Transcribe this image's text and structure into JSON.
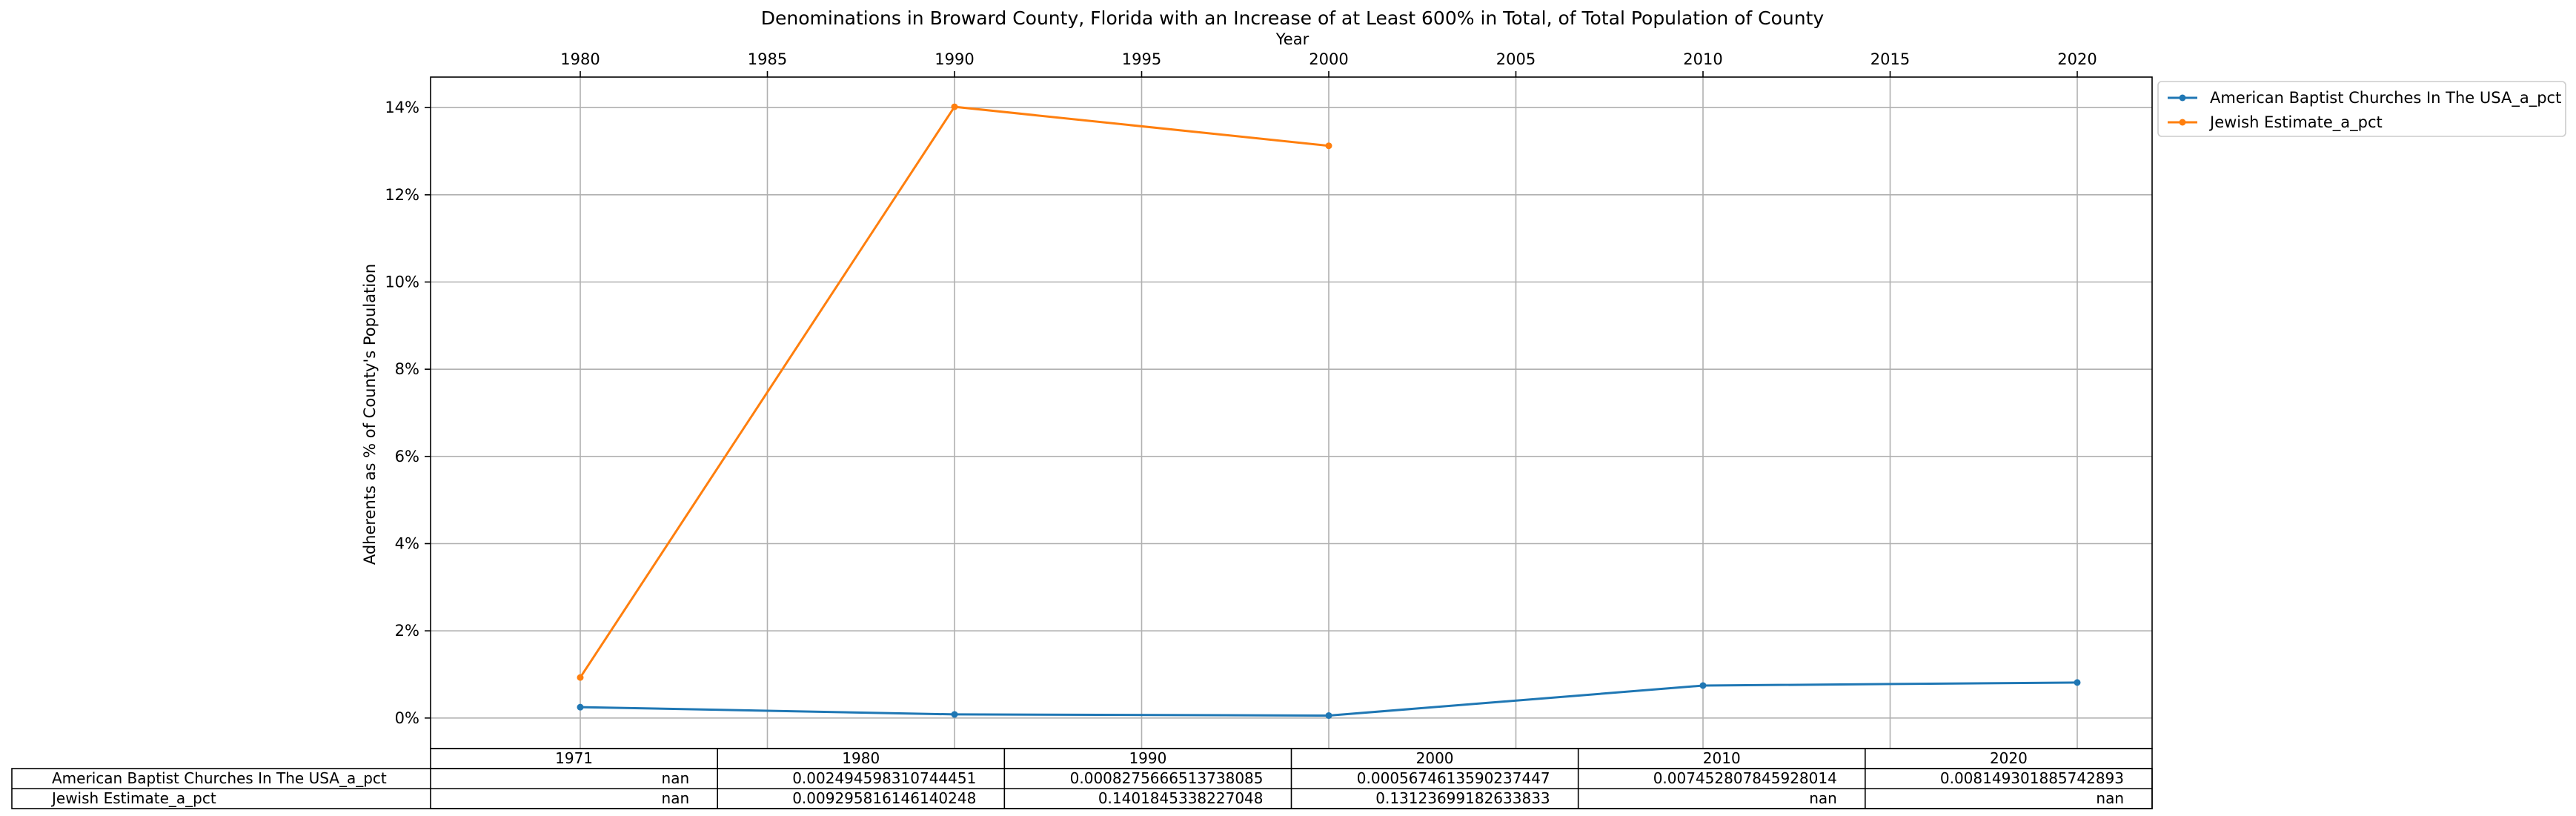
{
  "chart_data": {
    "type": "line",
    "title": "Denominations in Broward County, Florida with an Increase of at Least 600% in Total, of Total Population of County",
    "xlabel": "Year",
    "ylabel": "Adherents as % of County's Population",
    "x_ticks": [
      "1980",
      "1985",
      "1990",
      "1995",
      "2000",
      "2005",
      "2010",
      "2015",
      "2020"
    ],
    "y_ticks": [
      "0%",
      "2%",
      "4%",
      "6%",
      "8%",
      "10%",
      "12%",
      "14%"
    ],
    "xlim": [
      1976,
      2022
    ],
    "ylim": [
      -0.007,
      0.147
    ],
    "x_axis_position": "top",
    "grid": true,
    "legend_position": "outside upper right",
    "series": [
      {
        "name": "American Baptist Churches In The USA_a_pct",
        "color": "#1f77b4",
        "x": [
          1980,
          1990,
          2000,
          2010,
          2020
        ],
        "values": [
          0.002494598310744451,
          0.0008275666513738085,
          0.0005674613590237447,
          0.007452807845928014,
          0.008149301885742893
        ]
      },
      {
        "name": "Jewish Estimate_a_pct",
        "color": "#ff7f0e",
        "x": [
          1980,
          1990,
          2000
        ],
        "values": [
          0.009295816146140248,
          0.1401845338227048,
          0.13123699182633833
        ]
      }
    ],
    "table": {
      "columns": [
        "1971",
        "1980",
        "1990",
        "2000",
        "2010",
        "2020"
      ],
      "rows": [
        {
          "label": "American Baptist Churches In The USA_a_pct",
          "cells": [
            "nan",
            "0.002494598310744451",
            "0.0008275666513738085",
            "0.0005674613590237447",
            "0.007452807845928014",
            "0.008149301885742893"
          ]
        },
        {
          "label": "Jewish Estimate_a_pct",
          "cells": [
            "nan",
            "0.009295816146140248",
            "0.1401845338227048",
            "0.13123699182633833",
            "nan",
            "nan"
          ]
        }
      ]
    }
  }
}
